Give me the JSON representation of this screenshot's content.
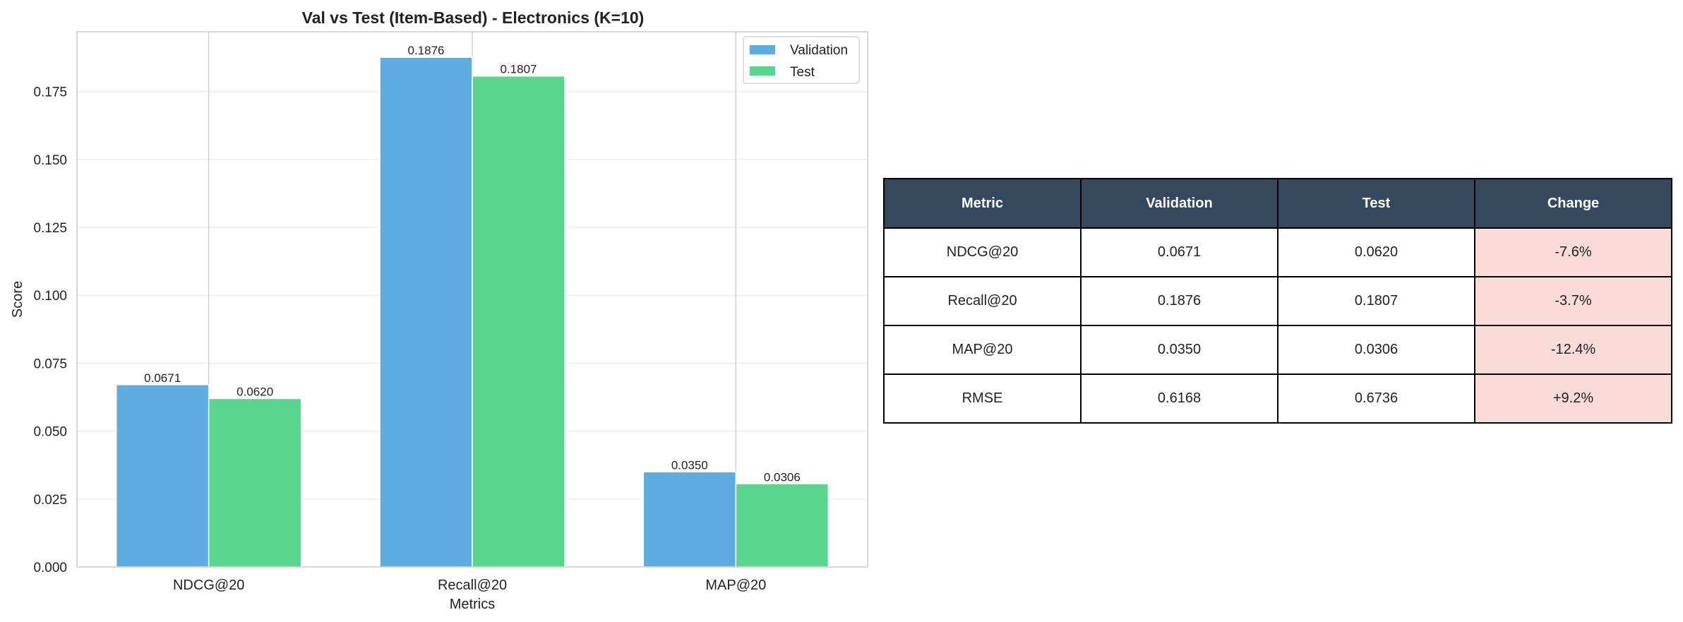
{
  "chart_data": {
    "type": "bar",
    "title": "Val vs Test (Item-Based) - Electronics (K=10)",
    "xlabel": "Metrics",
    "ylabel": "Score",
    "categories": [
      "NDCG@20",
      "Recall@20",
      "MAP@20"
    ],
    "series": [
      {
        "name": "Validation",
        "values": [
          0.0671,
          0.1876,
          0.035
        ],
        "labels": [
          "0.0671",
          "0.1876",
          "0.0350"
        ],
        "color": "#5dade2"
      },
      {
        "name": "Test",
        "values": [
          0.062,
          0.1807,
          0.0306
        ],
        "labels": [
          "0.0620",
          "0.1807",
          "0.0306"
        ],
        "color": "#58d68d"
      }
    ],
    "ylim": [
      0,
      0.197
    ],
    "yticks": [
      "0.000",
      "0.025",
      "0.050",
      "0.075",
      "0.100",
      "0.125",
      "0.150",
      "0.175"
    ],
    "grid": true,
    "legend_position": "top-right"
  },
  "table": {
    "headers": [
      "Metric",
      "Validation",
      "Test",
      "Change"
    ],
    "rows": [
      [
        "NDCG@20",
        "0.0671",
        "0.0620",
        "-7.6%"
      ],
      [
        "Recall@20",
        "0.1876",
        "0.1807",
        "-3.7%"
      ],
      [
        "MAP@20",
        "0.0350",
        "0.0306",
        "-12.4%"
      ],
      [
        "RMSE",
        "0.6168",
        "0.6736",
        "+9.2%"
      ]
    ],
    "header_color": "#34495e",
    "change_color": "#fadbd8"
  }
}
